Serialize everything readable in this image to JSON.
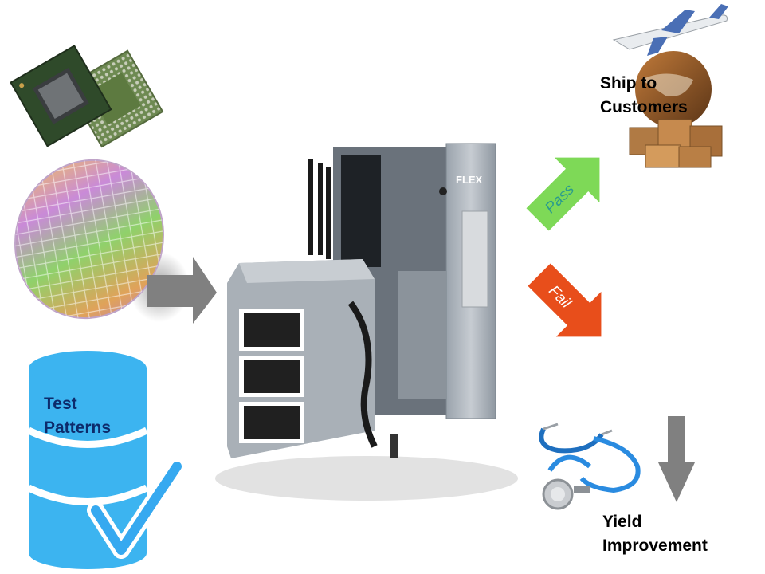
{
  "ship": {
    "line1": "Ship to",
    "line2": "Customers"
  },
  "pass_label": "Pass",
  "fail_label": "Fail",
  "test_patterns": {
    "line1": "Test",
    "line2": "Patterns"
  },
  "yield": {
    "line1": "Yield",
    "line2": "Improvement"
  },
  "tester_brand": "FLEX",
  "colors": {
    "pass_arrow": "#7ed957",
    "fail_arrow": "#e84e1b",
    "gray_arrow": "#808080",
    "database": "#3cb4f0",
    "check": "#36a9f0",
    "label_blue": "#0d2b6b"
  }
}
